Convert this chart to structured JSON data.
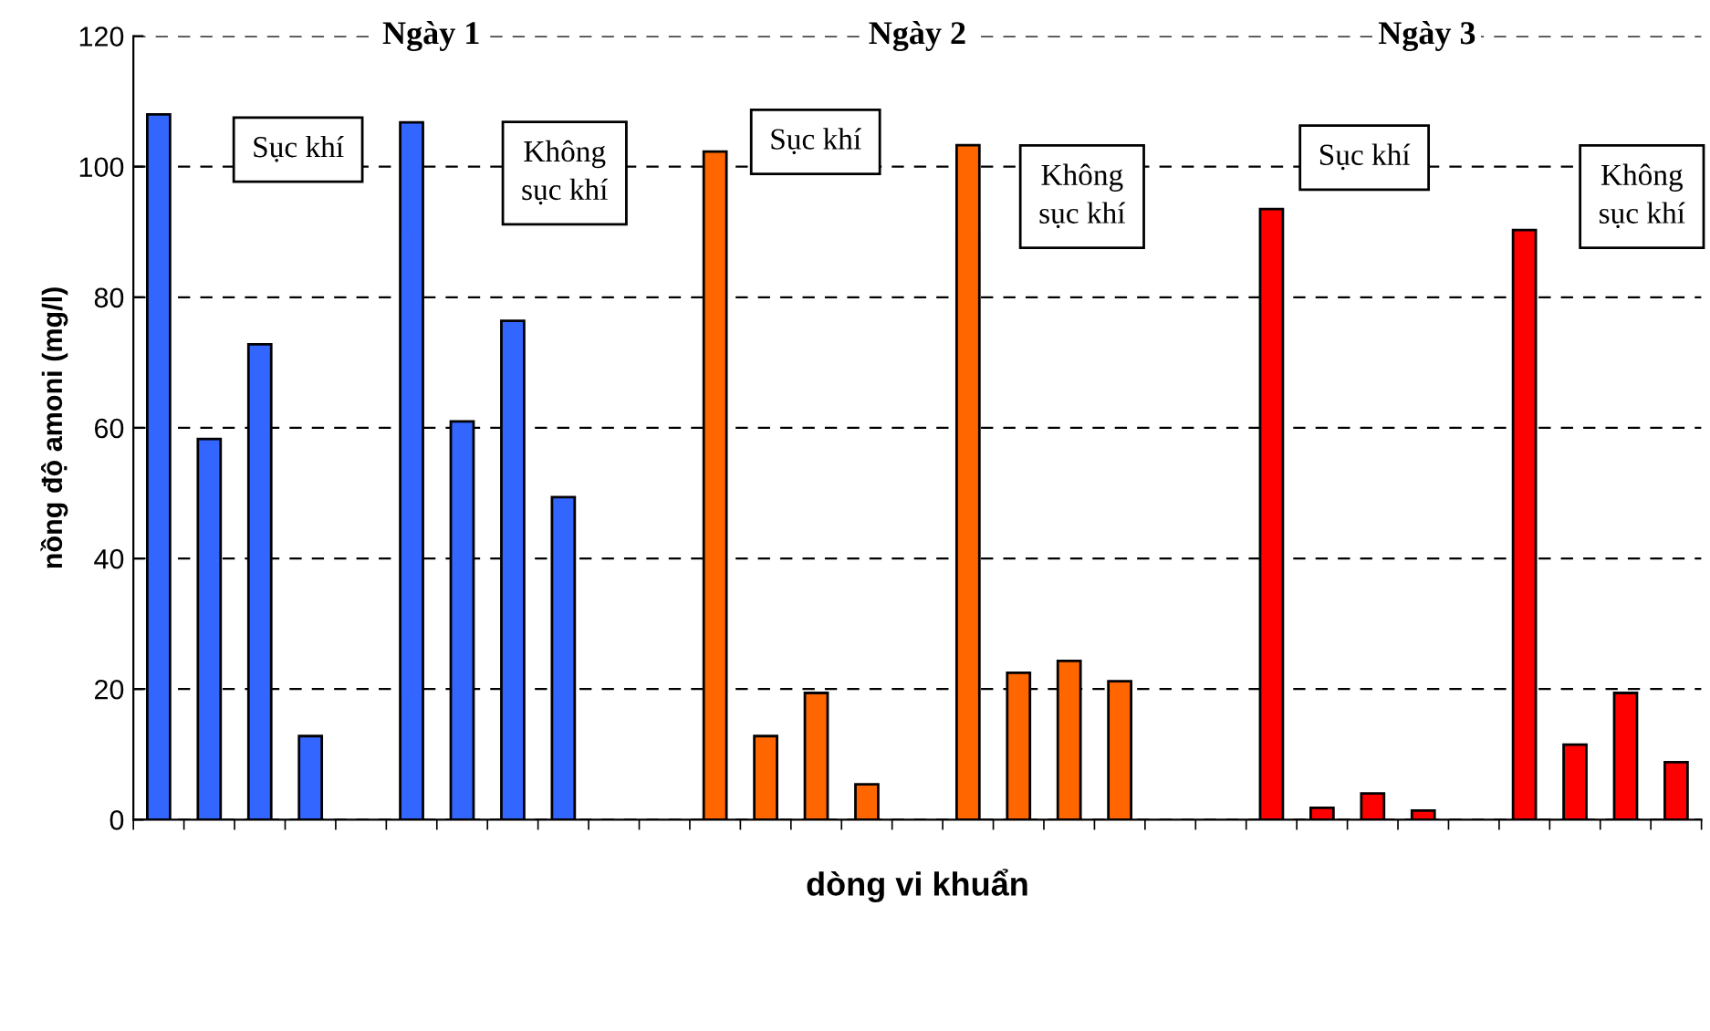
{
  "chart_data": {
    "type": "bar",
    "xlabel": "dòng vi khuẩn",
    "ylabel": "nồng độ amoni (mg/l)",
    "categories": [
      null,
      null,
      null,
      null,
      null,
      null,
      null,
      null,
      null,
      null,
      null,
      null,
      null,
      null,
      null,
      null,
      null,
      null,
      null,
      null,
      null,
      null,
      null,
      null,
      null,
      null,
      null,
      null,
      null,
      null,
      null
    ],
    "values": [
      108,
      58.3,
      72.8,
      12.8,
      null,
      106.8,
      61,
      76.4,
      49.4,
      null,
      null,
      102.3,
      12.8,
      19.4,
      5.4,
      null,
      103.3,
      22.5,
      24.3,
      21.2,
      null,
      null,
      93.5,
      1.8,
      4,
      1.4,
      null,
      90.3,
      11.5,
      19.4,
      8.8
    ],
    "colors": [
      "#3366ff",
      "#3366ff",
      "#3366ff",
      "#3366ff",
      null,
      "#3366ff",
      "#3366ff",
      "#3366ff",
      "#3366ff",
      null,
      null,
      "#ff6600",
      "#ff6600",
      "#ff6600",
      "#ff6600",
      null,
      "#ff6600",
      "#ff6600",
      "#ff6600",
      "#ff6600",
      null,
      null,
      "#ff0000",
      "#ff0000",
      "#ff0000",
      "#ff0000",
      null,
      "#ff0000",
      "#ff0000",
      "#ff0000",
      "#ff0000"
    ],
    "ylim": [
      0,
      120
    ],
    "yticks": [
      0,
      20,
      40,
      60,
      80,
      100,
      120
    ],
    "grid": "y",
    "annotations": [
      "Ngày 1",
      "Ngày 2",
      "Ngày 3",
      "Sục khí",
      "Không\nsục khí",
      "Sục khí",
      "Không\nsục khí",
      "Sục khí",
      "Không\nsục khí"
    ]
  }
}
